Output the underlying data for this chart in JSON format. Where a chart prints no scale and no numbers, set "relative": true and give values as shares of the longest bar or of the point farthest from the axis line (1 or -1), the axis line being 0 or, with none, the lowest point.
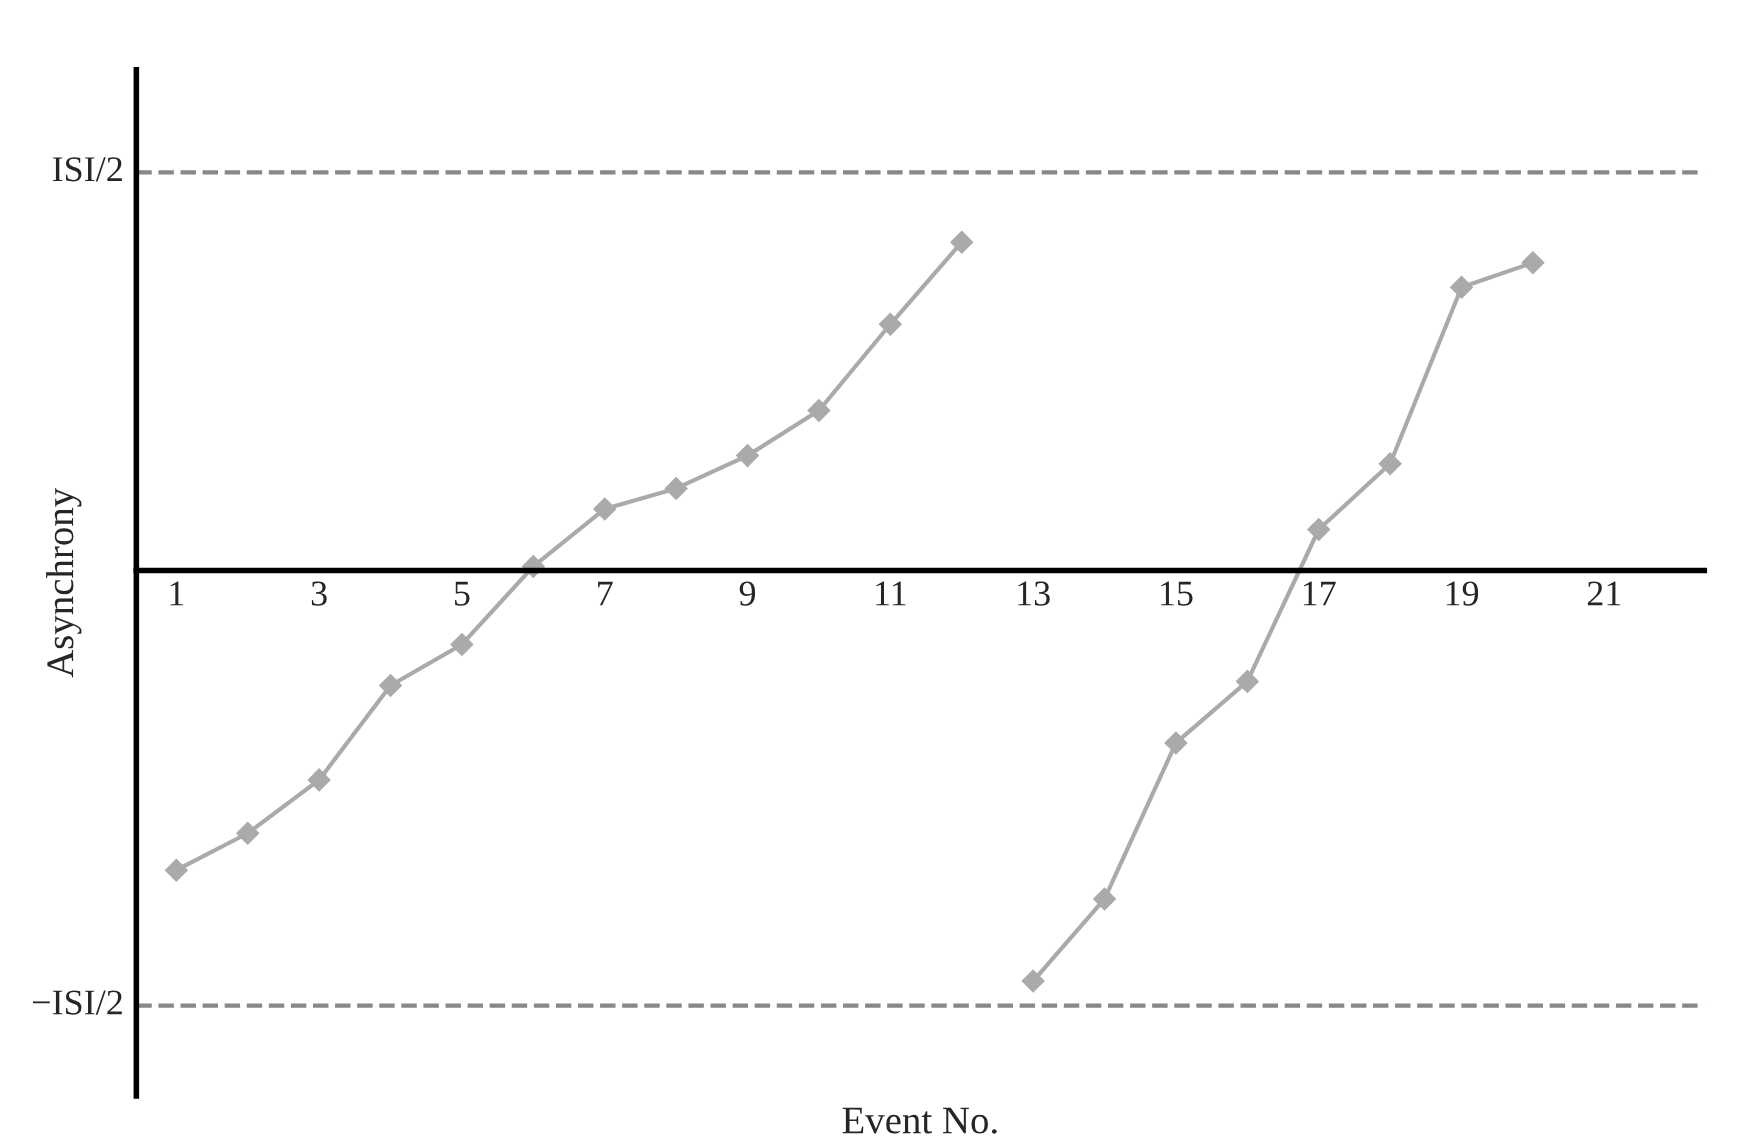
{
  "chart_data": {
    "type": "line",
    "xlabel": "Event No.",
    "ylabel": "Asynchrony",
    "relative": true,
    "series": [
      {
        "color": "#aaaaaa",
        "x": [
          1,
          2,
          3,
          4,
          5,
          6,
          7,
          8,
          9,
          10,
          11,
          12
        ],
        "values": [
          -0.73,
          -0.64,
          -0.51,
          -0.28,
          -0.18,
          0.01,
          0.15,
          0.2,
          0.28,
          0.39,
          0.6,
          0.8
        ]
      },
      {
        "color": "#aaaaaa",
        "x": [
          13,
          14,
          15,
          16,
          17,
          18,
          19,
          20
        ],
        "values": [
          -1,
          -0.8,
          -0.42,
          -0.27,
          0.1,
          0.26,
          0.69,
          0.75
        ]
      }
    ],
    "xlim": [
      0.44,
      22.4
    ],
    "xticks": [
      1,
      3,
      5,
      7,
      9,
      11,
      13,
      15,
      17,
      19,
      21
    ],
    "ref_lines": [
      {
        "axis": "y",
        "value": 0.97,
        "label": "ISI/2",
        "color": "#888888",
        "line_style": "dashed"
      },
      {
        "axis": "y",
        "value": -1.06,
        "label": "−ISI/2",
        "color": "#888888",
        "line_style": "dashed"
      }
    ],
    "marker": "diamond",
    "line_style": "solid",
    "grid": false,
    "legend": false
  }
}
